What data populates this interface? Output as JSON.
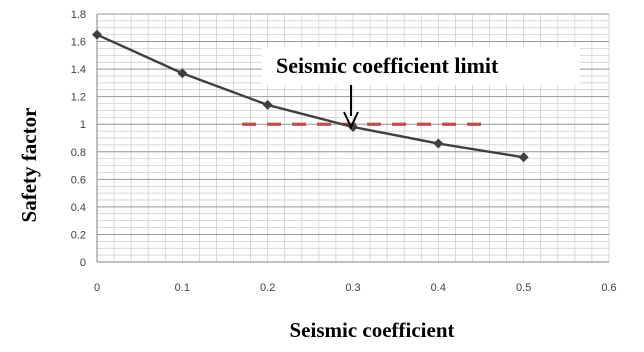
{
  "chart_data": {
    "type": "line",
    "title": "",
    "xlabel": "Seismic coefficient",
    "ylabel": "Safety factor",
    "xlim": [
      0,
      0.6
    ],
    "ylim": [
      0,
      1.8
    ],
    "x_ticks": [
      "0",
      "0.1",
      "0.2",
      "0.3",
      "0.4",
      "0.5",
      "0.6"
    ],
    "y_ticks": [
      "0",
      "0.2",
      "0.4",
      "0.6",
      "0.8",
      "1",
      "1.2",
      "1.4",
      "1.6",
      "1.8"
    ],
    "grid": true,
    "series": [
      {
        "x": [
          0,
          0.1,
          0.2,
          0.3,
          0.4,
          0.5
        ],
        "values": [
          1.65,
          1.37,
          1.14,
          0.98,
          0.86,
          0.76
        ],
        "color": "#404040",
        "marker": "diamond"
      }
    ],
    "reference_lines": [
      {
        "y": 1.0,
        "x_from": 0.17,
        "x_to": 0.45,
        "color": "#c0504d",
        "style": "dashed"
      }
    ],
    "annotations": [
      {
        "text": "Seismic coefficient limit",
        "arrow_to": {
          "x": 0.29,
          "y": 1.0
        }
      }
    ]
  }
}
